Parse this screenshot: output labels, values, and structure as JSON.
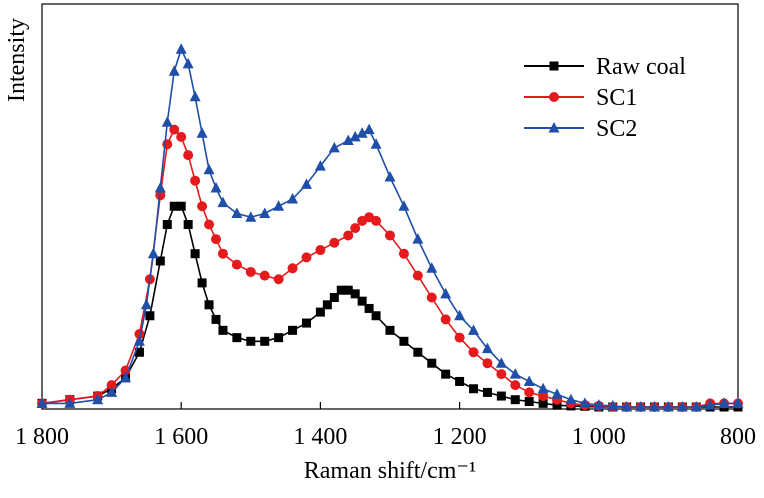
{
  "chart_data": {
    "type": "line",
    "title": "",
    "xlabel": "Raman shift/cm⁻¹",
    "ylabel": "Intensity",
    "x_reversed": true,
    "xlim": [
      1800,
      800
    ],
    "ylim": [
      0,
      100
    ],
    "xticks": [
      1800,
      1600,
      1400,
      1200,
      1000,
      800
    ],
    "xtick_labels": [
      "1 800",
      "1 600",
      "1 400",
      "1 200",
      "1 000",
      "800"
    ],
    "y_ticks_shown": false,
    "grid": false,
    "legend_position": "top-right",
    "series": [
      {
        "name": "Raw coal",
        "color": "#000000",
        "marker": "square",
        "x": [
          1800,
          1760,
          1720,
          1700,
          1680,
          1660,
          1645,
          1630,
          1620,
          1610,
          1600,
          1590,
          1580,
          1570,
          1560,
          1550,
          1540,
          1520,
          1500,
          1480,
          1460,
          1440,
          1420,
          1400,
          1390,
          1380,
          1370,
          1360,
          1350,
          1340,
          1330,
          1320,
          1300,
          1280,
          1260,
          1240,
          1220,
          1200,
          1180,
          1160,
          1140,
          1120,
          1100,
          1080,
          1060,
          1040,
          1020,
          1000,
          980,
          960,
          940,
          920,
          900,
          880,
          860,
          840,
          820,
          800
        ],
        "y": [
          1,
          2,
          3,
          5,
          8,
          15,
          25,
          40,
          50,
          55,
          55,
          50,
          42,
          34,
          28,
          24,
          21,
          19,
          18,
          18,
          19,
          21,
          23,
          26,
          28,
          30,
          32,
          32,
          31,
          29,
          27,
          25,
          21,
          18,
          15,
          12,
          9,
          7,
          5,
          4,
          3,
          2,
          1.5,
          1,
          0.5,
          0.3,
          0.2,
          0,
          0,
          0,
          0,
          0,
          0,
          0,
          0,
          0,
          0,
          0
        ]
      },
      {
        "name": "SC1",
        "color": "#e41a1c",
        "marker": "circle",
        "x": [
          1800,
          1760,
          1720,
          1700,
          1680,
          1660,
          1645,
          1630,
          1620,
          1610,
          1600,
          1590,
          1580,
          1570,
          1560,
          1550,
          1540,
          1520,
          1500,
          1480,
          1460,
          1440,
          1420,
          1400,
          1380,
          1360,
          1350,
          1340,
          1330,
          1320,
          1300,
          1280,
          1260,
          1240,
          1220,
          1200,
          1180,
          1160,
          1140,
          1120,
          1100,
          1080,
          1060,
          1040,
          1020,
          1000,
          980,
          960,
          940,
          920,
          900,
          880,
          860,
          840,
          820,
          800
        ],
        "y": [
          1,
          2,
          3,
          6,
          10,
          20,
          35,
          58,
          72,
          76,
          74,
          69,
          62,
          55,
          50,
          46,
          42,
          39,
          37,
          36,
          35,
          38,
          41,
          43,
          45,
          47,
          49,
          51,
          52,
          51,
          47,
          42,
          36,
          30,
          24,
          19,
          15,
          12,
          9,
          6,
          4,
          3,
          2,
          1,
          0.5,
          0.3,
          0,
          0,
          0,
          0,
          0,
          0,
          0,
          1,
          1,
          1
        ]
      },
      {
        "name": "SC2",
        "color": "#1f4fa8",
        "marker": "triangle",
        "x": [
          1800,
          1760,
          1720,
          1700,
          1680,
          1660,
          1650,
          1640,
          1630,
          1620,
          1610,
          1600,
          1590,
          1580,
          1570,
          1560,
          1550,
          1540,
          1520,
          1500,
          1480,
          1460,
          1440,
          1420,
          1400,
          1380,
          1360,
          1350,
          1340,
          1330,
          1320,
          1300,
          1280,
          1260,
          1240,
          1220,
          1200,
          1180,
          1160,
          1140,
          1120,
          1100,
          1080,
          1060,
          1040,
          1020,
          1000,
          980,
          960,
          940,
          920,
          900,
          880,
          860,
          840,
          820,
          800
        ],
        "y": [
          1,
          1,
          2,
          4,
          8,
          18,
          28,
          42,
          60,
          78,
          92,
          98,
          94,
          85,
          75,
          65,
          60,
          56,
          53,
          52,
          53,
          55,
          57,
          61,
          66,
          71,
          73,
          74,
          75,
          76,
          72,
          63,
          55,
          46,
          38,
          31,
          25,
          21,
          16,
          12,
          9,
          7,
          5,
          3.5,
          2,
          1,
          0.5,
          0.3,
          0,
          0,
          0,
          0,
          0,
          0,
          0.5,
          1,
          1
        ]
      }
    ]
  }
}
